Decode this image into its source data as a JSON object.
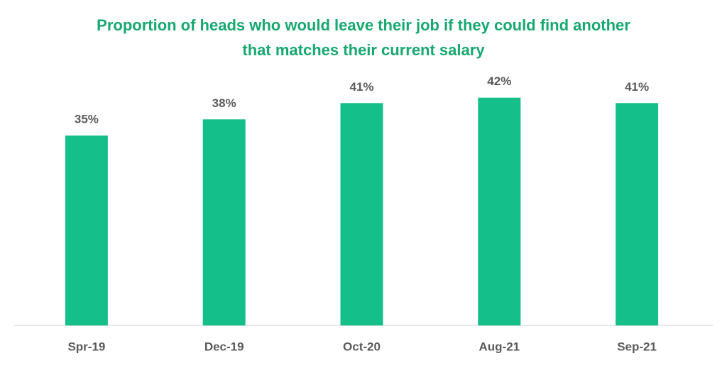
{
  "chart_data": {
    "type": "bar",
    "title": "Proportion of heads who would leave their job if they could find another that matches their current salary",
    "categories": [
      "Spr-19",
      "Dec-19",
      "Oct-20",
      "Aug-21",
      "Sep-21"
    ],
    "values": [
      35,
      38,
      41,
      42,
      41
    ],
    "value_labels": [
      "35%",
      "38%",
      "41%",
      "42%",
      "41%"
    ],
    "color": "#14bf8a"
  }
}
